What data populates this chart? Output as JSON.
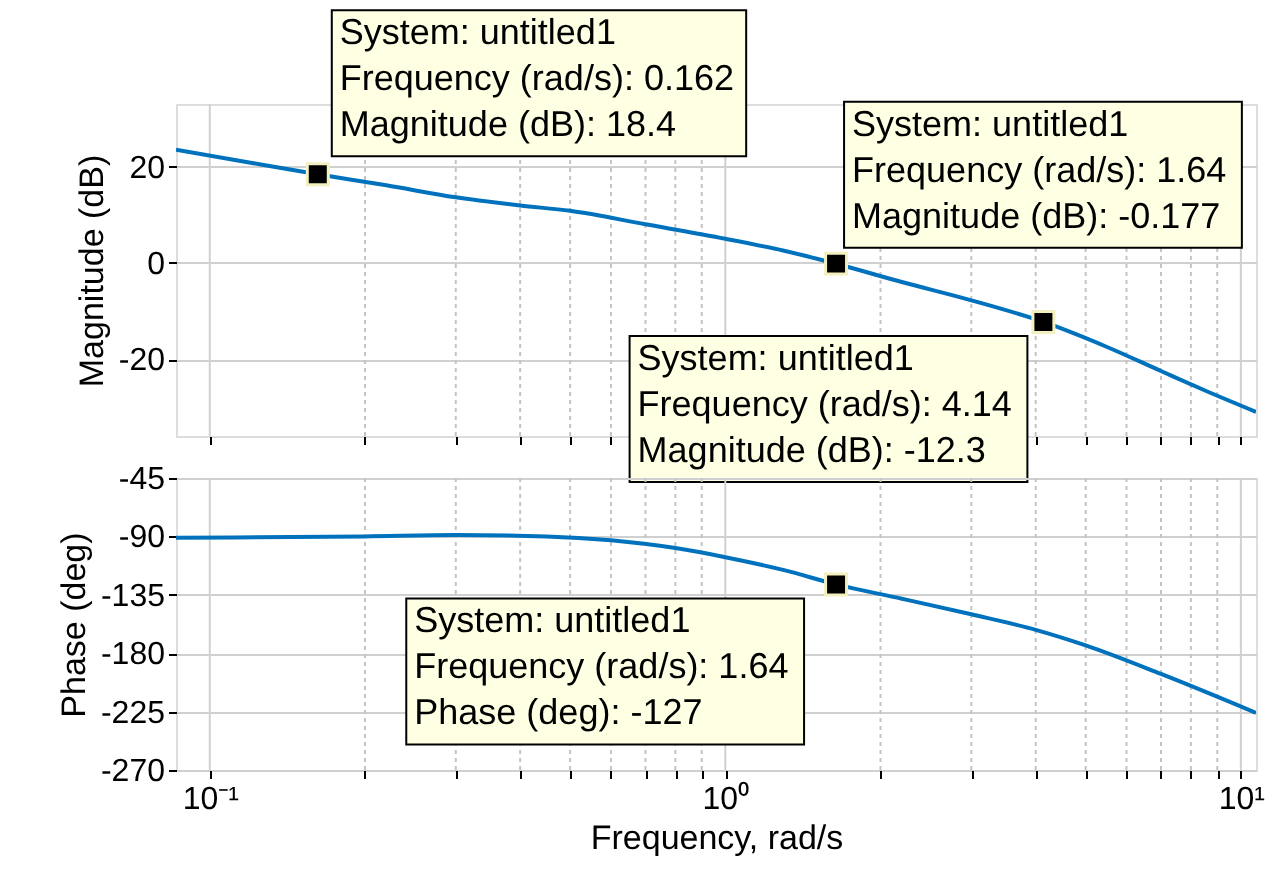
{
  "chart_data": [
    {
      "type": "line",
      "ylabel": "Magnitude (dB)",
      "tick_labels": "y",
      "grid": true,
      "log": "x",
      "x": [
        0.086,
        0.12,
        0.162,
        0.22,
        0.3,
        0.4,
        0.5,
        0.7,
        1.0,
        1.3,
        1.64,
        2.2,
        3,
        4.14,
        5.5,
        7,
        8.5,
        10.7
      ],
      "series": [
        {
          "color": "#0072bd",
          "values": [
            23.5,
            20.8,
            18.4,
            16.1,
            13.6,
            11.9,
            10.8,
            8,
            5,
            2.5,
            -0.2,
            -4,
            -7.8,
            -12.3,
            -17.5,
            -22.5,
            -26.5,
            -31
          ]
        },
        {
          "type": "scatter",
          "marker": "square",
          "color": "#000000",
          "x": [
            0.162,
            1.64,
            4.14
          ],
          "values": [
            18.4,
            -0.177,
            -12.3
          ]
        }
      ],
      "xlim": [
        0.086,
        10.7
      ],
      "xticks": [
        {
          "value": 0.1,
          "label": null
        },
        {
          "value": 0.2,
          "label": null
        },
        {
          "value": 0.3,
          "label": null
        },
        {
          "value": 0.4,
          "label": null
        },
        {
          "value": 0.5,
          "label": null
        },
        {
          "value": 0.6,
          "label": null
        },
        {
          "value": 0.7,
          "label": null
        },
        {
          "value": 0.8,
          "label": null
        },
        {
          "value": 0.9,
          "label": null
        },
        {
          "value": 1,
          "label": null
        },
        {
          "value": 2,
          "label": null
        },
        {
          "value": 3,
          "label": null
        },
        {
          "value": 4,
          "label": null
        },
        {
          "value": 5,
          "label": null
        },
        {
          "value": 6,
          "label": null
        },
        {
          "value": 7,
          "label": null
        },
        {
          "value": 8,
          "label": null
        },
        {
          "value": 9,
          "label": null
        },
        {
          "value": 10,
          "label": null
        }
      ],
      "ylim": [
        -36,
        33
      ],
      "yticks": [
        -20,
        0,
        20
      ],
      "annotations": [
        {
          "text": "System: untitled1\nFrequency (rad/s): 0.162\nMagnitude (dB): 18.4",
          "x": 0.162,
          "y": 18.4
        },
        {
          "text": "System: untitled1\nFrequency (rad/s): 1.64\nMagnitude (dB): -0.177",
          "x": 1.64,
          "y": -0.177
        },
        {
          "text": "System: untitled1\nFrequency (rad/s): 4.14\nMagnitude (dB): -12.3",
          "x": 4.14,
          "y": -12.3
        }
      ]
    },
    {
      "type": "line",
      "ylabel": "Phase (deg)",
      "xlabel": "Frequency, rad/s",
      "grid": true,
      "log": "x",
      "x": [
        0.086,
        0.2,
        0.3,
        0.45,
        0.6,
        0.8,
        1.0,
        1.3,
        1.64,
        2.2,
        3,
        4,
        5,
        7,
        10.7
      ],
      "series": [
        {
          "color": "#0072bd",
          "values": [
            -91,
            -90,
            -89,
            -90,
            -93,
            -99,
            -106,
            -116,
            -127,
            -138,
            -150,
            -162,
            -174,
            -196,
            -226
          ]
        },
        {
          "type": "scatter",
          "marker": "square",
          "color": "#000000",
          "x": [
            1.64
          ],
          "values": [
            -127
          ]
        }
      ],
      "xlim": [
        0.086,
        10.7
      ],
      "xticks": [
        {
          "value": 0.1,
          "label": "10⁻¹"
        },
        {
          "value": 0.2,
          "label": null
        },
        {
          "value": 0.3,
          "label": null
        },
        {
          "value": 0.4,
          "label": null
        },
        {
          "value": 0.5,
          "label": null
        },
        {
          "value": 0.6,
          "label": null
        },
        {
          "value": 0.7,
          "label": null
        },
        {
          "value": 0.8,
          "label": null
        },
        {
          "value": 0.9,
          "label": null
        },
        {
          "value": 1,
          "label": "10⁰"
        },
        {
          "value": 2,
          "label": null
        },
        {
          "value": 3,
          "label": null
        },
        {
          "value": 4,
          "label": null
        },
        {
          "value": 5,
          "label": null
        },
        {
          "value": 6,
          "label": null
        },
        {
          "value": 7,
          "label": null
        },
        {
          "value": 8,
          "label": null
        },
        {
          "value": 9,
          "label": null
        },
        {
          "value": 10,
          "label": "10¹"
        }
      ],
      "ylim": [
        -270,
        -45
      ],
      "yticks": [
        -270,
        -225,
        -180,
        -135,
        -90,
        -45
      ],
      "annotations": [
        {
          "text": "System: untitled1\nFrequency (rad/s): 1.64\nPhase (deg): -127",
          "x": 1.64,
          "y": -127
        }
      ]
    }
  ]
}
